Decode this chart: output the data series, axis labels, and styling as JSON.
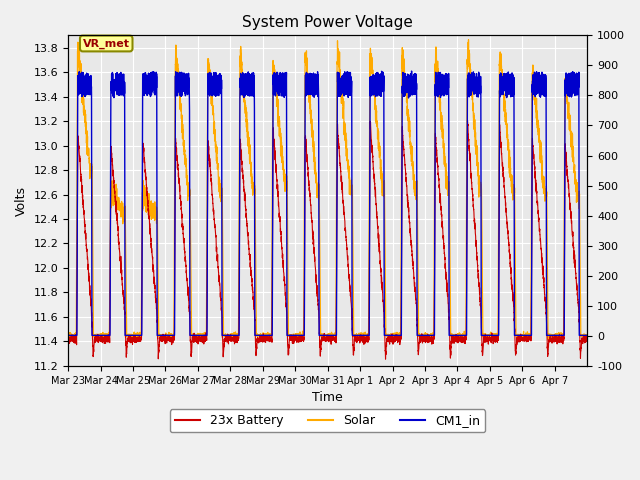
{
  "title": "System Power Voltage",
  "xlabel": "Time",
  "ylabel_left": "Volts",
  "ylim_left": [
    11.2,
    13.9
  ],
  "ylim_right": [
    -100,
    1000
  ],
  "yticks_left": [
    11.2,
    11.4,
    11.6,
    11.8,
    12.0,
    12.2,
    12.4,
    12.6,
    12.8,
    13.0,
    13.2,
    13.4,
    13.6,
    13.8
  ],
  "yticks_right": [
    -100,
    0,
    100,
    200,
    300,
    400,
    500,
    600,
    700,
    800,
    900,
    1000
  ],
  "xtick_labels": [
    "Mar 23",
    "Mar 24",
    "Mar 25",
    "Mar 26",
    "Mar 27",
    "Mar 28",
    "Mar 29",
    "Mar 30",
    "Mar 31",
    "Apr 1",
    "Apr 2",
    "Apr 3",
    "Apr 4",
    "Apr 5",
    "Apr 6",
    "Apr 7"
  ],
  "legend_labels": [
    "23x Battery",
    "Solar",
    "CM1_in"
  ],
  "battery_color": "#cc0000",
  "solar_color": "#ffaa00",
  "cm1_color": "#0000cc",
  "annotation_text": "VR_met",
  "bg_color": "#e8e8e8",
  "grid_color": "#ffffff",
  "figsize": [
    6.4,
    4.8
  ],
  "dpi": 100
}
